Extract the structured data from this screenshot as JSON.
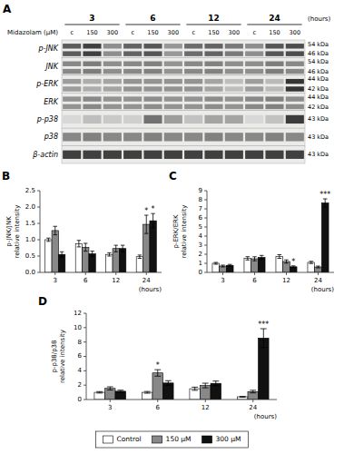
{
  "chart_data": [
    {
      "type": "blot",
      "title": "A",
      "x_label": "(hours)",
      "y_label": "Midazolam (μM)",
      "groups": [
        "3",
        "6",
        "12",
        "24"
      ],
      "conditions": [
        "c",
        "150",
        "300"
      ],
      "rows": [
        "p-JNK",
        "JNK",
        "p-ERK",
        "ERK",
        "p-p38",
        "p38",
        "β-actin"
      ],
      "kda_labels": [
        [
          "54 kDa",
          "46 kDa"
        ],
        [
          "54 kDa",
          "46 kDa"
        ],
        [
          "44 kDa",
          "42 kDa"
        ],
        [
          "44 kDa",
          "42 kDa"
        ],
        [
          "43 kDa"
        ],
        [
          "43 kDa"
        ],
        [
          "43 kDa"
        ]
      ],
      "cells": [
        [
          0.75,
          0.88,
          0.52,
          0.72,
          0.78,
          0.48,
          0.68,
          0.72,
          0.62,
          0.52,
          0.78,
          0.82
        ],
        [
          0.55,
          0.6,
          0.52,
          0.55,
          0.58,
          0.5,
          0.55,
          0.58,
          0.52,
          0.52,
          0.6,
          0.55
        ],
        [
          0.45,
          0.38,
          0.42,
          0.5,
          0.5,
          0.5,
          0.5,
          0.42,
          0.3,
          0.45,
          0.32,
          0.93
        ],
        [
          0.5,
          0.55,
          0.5,
          0.5,
          0.53,
          0.5,
          0.5,
          0.53,
          0.5,
          0.55,
          0.58,
          0.53
        ],
        [
          0.18,
          0.3,
          0.25,
          0.22,
          0.65,
          0.45,
          0.28,
          0.42,
          0.42,
          0.18,
          0.28,
          0.9
        ],
        [
          0.55,
          0.58,
          0.55,
          0.55,
          0.58,
          0.55,
          0.55,
          0.58,
          0.55,
          0.55,
          0.58,
          0.55
        ],
        [
          0.88,
          0.88,
          0.88,
          0.88,
          0.88,
          0.88,
          0.88,
          0.88,
          0.88,
          0.88,
          0.88,
          0.88
        ]
      ]
    },
    {
      "type": "bar",
      "title": "B",
      "y_label": "p-JNK/JNK\nrelative intensity",
      "x_label": "(hours)",
      "categories": [
        "3",
        "6",
        "12",
        "24"
      ],
      "ylim": [
        0,
        2.5
      ],
      "yticks": [
        {
          "value": 0,
          "label": "0.0"
        },
        0.5,
        {
          "value": 1,
          "label": "1.0"
        },
        1.5,
        {
          "value": 2,
          "label": "2.0"
        },
        2.5
      ],
      "grid": false,
      "series": [
        {
          "name": "Control",
          "color": "#ffffff",
          "values": [
            1.0,
            0.88,
            0.55,
            0.48
          ],
          "errors": [
            0.05,
            0.1,
            0.05,
            0.05
          ]
        },
        {
          "name": "150 μM",
          "color": "#888888",
          "values": [
            1.28,
            0.77,
            0.73,
            1.47
          ],
          "errors": [
            0.13,
            0.12,
            0.1,
            0.28
          ]
        },
        {
          "name": "300 μM",
          "color": "#111111",
          "values": [
            0.55,
            0.57,
            0.73,
            1.58
          ],
          "errors": [
            0.08,
            0.08,
            0.1,
            0.22
          ]
        }
      ],
      "annotations": [
        {
          "text": "*",
          "series": 1,
          "index": 3
        },
        {
          "text": "*",
          "series": 2,
          "index": 3
        }
      ]
    },
    {
      "type": "bar",
      "title": "C",
      "y_label": "p-ERK/ERK\nrelative intensity",
      "x_label": "(hours)",
      "categories": [
        "3",
        "6",
        "12",
        "24"
      ],
      "ylim": [
        0,
        9
      ],
      "yticks": [
        0,
        1,
        2,
        3,
        4,
        5,
        6,
        7,
        8,
        9
      ],
      "grid": false,
      "series": [
        {
          "color": "#ffffff",
          "values": [
            1.0,
            1.55,
            1.75,
            1.1
          ],
          "errors": [
            0.1,
            0.18,
            0.2,
            0.12
          ]
        },
        {
          "color": "#888888",
          "values": [
            0.7,
            1.5,
            1.2,
            0.6
          ],
          "errors": [
            0.1,
            0.22,
            0.18,
            0.1
          ]
        },
        {
          "color": "#111111",
          "values": [
            0.78,
            1.65,
            0.62,
            7.65
          ],
          "errors": [
            0.1,
            0.22,
            0.1,
            0.45
          ]
        }
      ],
      "annotations": [
        {
          "text": "***",
          "series": 2,
          "index": 3
        },
        {
          "text": "*",
          "series": 2,
          "index": 2
        }
      ]
    },
    {
      "type": "bar",
      "title": "D",
      "y_label": "p-p38/p38\nrelative intensity",
      "x_label": "(hours)",
      "categories": [
        "3",
        "6",
        "12",
        "24"
      ],
      "ylim": [
        0,
        12
      ],
      "yticks": [
        0,
        2,
        4,
        6,
        8,
        10,
        12
      ],
      "grid": false,
      "series": [
        {
          "color": "#ffffff",
          "values": [
            1.0,
            1.0,
            1.5,
            0.38
          ],
          "errors": [
            0.1,
            0.12,
            0.22,
            0.05
          ]
        },
        {
          "color": "#888888",
          "values": [
            1.55,
            3.7,
            1.95,
            1.1
          ],
          "errors": [
            0.22,
            0.45,
            0.32,
            0.18
          ]
        },
        {
          "color": "#111111",
          "values": [
            1.15,
            2.3,
            2.25,
            8.55
          ],
          "errors": [
            0.15,
            0.32,
            0.32,
            1.3
          ]
        }
      ],
      "annotations": [
        {
          "text": "*",
          "series": 1,
          "index": 1
        },
        {
          "text": "***",
          "series": 2,
          "index": 3
        }
      ]
    }
  ]
}
